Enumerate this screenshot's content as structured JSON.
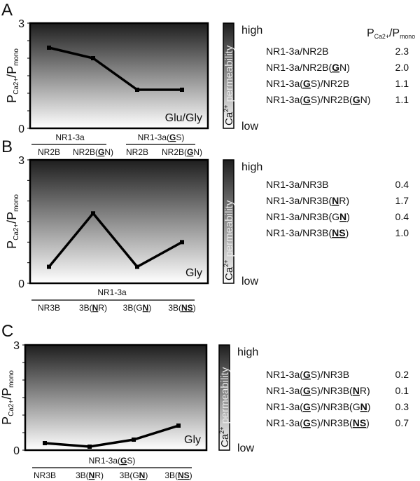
{
  "chart_data": [
    {
      "panel_letter": "A",
      "type": "line",
      "ylabel": {
        "main": "P",
        "sub1": "Ca2+",
        "mid": "/P",
        "sub2": "mono"
      },
      "ylim": [
        0,
        3
      ],
      "yticks": [
        "0",
        "3"
      ],
      "condition": "Glu/Gly",
      "groups": [
        {
          "label": [
            {
              "t": "NR1-3a"
            }
          ]
        },
        {
          "label": [
            {
              "t": "NR1-3a("
            },
            {
              "t": "G",
              "b": true
            },
            {
              "t": "S)"
            }
          ]
        }
      ],
      "categories": [
        [
          {
            "t": "NR2B"
          }
        ],
        [
          {
            "t": "NR2B("
          },
          {
            "t": "G",
            "b": true
          },
          {
            "t": "N)"
          }
        ],
        [
          {
            "t": "NR2B"
          }
        ],
        [
          {
            "t": "NR2B("
          },
          {
            "t": "G",
            "b": true
          },
          {
            "t": "N)"
          }
        ]
      ],
      "values": [
        2.3,
        2.0,
        1.1,
        1.1
      ],
      "scale": {
        "label": "permeability",
        "ion": "Ca",
        "charge": "2+",
        "high": "high",
        "low": "low"
      },
      "table_header": {
        "main": "P",
        "sub1": "Ca2+",
        "mid": "/P",
        "sub2": "mono"
      },
      "table": [
        {
          "name": [
            {
              "t": "NR1-3a/NR2B"
            }
          ],
          "value": "2.3"
        },
        {
          "name": [
            {
              "t": "NR1-3a/NR2B("
            },
            {
              "t": "G",
              "b": true
            },
            {
              "t": "N)"
            }
          ],
          "value": "2.0"
        },
        {
          "name": [
            {
              "t": "NR1-3a("
            },
            {
              "t": "G",
              "b": true
            },
            {
              "t": "S)/NR2B"
            }
          ],
          "value": "1.1"
        },
        {
          "name": [
            {
              "t": "NR1-3a("
            },
            {
              "t": "G",
              "b": true
            },
            {
              "t": "S)/NR2B("
            },
            {
              "t": "G",
              "b": true
            },
            {
              "t": "N)"
            }
          ],
          "value": "1.1"
        }
      ]
    },
    {
      "panel_letter": "B",
      "type": "line",
      "ylabel": {
        "main": "P",
        "sub1": "Ca2+",
        "mid": "/P",
        "sub2": "mono"
      },
      "ylim": [
        0,
        3
      ],
      "yticks": [
        "0",
        "3"
      ],
      "condition": "Gly",
      "groups": [
        {
          "label": [
            {
              "t": "NR1-3a"
            }
          ]
        }
      ],
      "categories": [
        [
          {
            "t": "NR3B"
          }
        ],
        [
          {
            "t": "3B("
          },
          {
            "t": "N",
            "b": true
          },
          {
            "t": "R)"
          }
        ],
        [
          {
            "t": "3B(G"
          },
          {
            "t": "N",
            "b": true
          },
          {
            "t": ")"
          }
        ],
        [
          {
            "t": "3B("
          },
          {
            "t": "NS",
            "b": true
          },
          {
            "t": ")"
          }
        ]
      ],
      "values": [
        0.4,
        1.7,
        0.4,
        1.0
      ],
      "scale": {
        "label": "permeability",
        "ion": "Ca",
        "charge": "2+",
        "high": "high",
        "low": "low"
      },
      "table": [
        {
          "name": [
            {
              "t": "NR1-3a/NR3B"
            }
          ],
          "value": "0.4"
        },
        {
          "name": [
            {
              "t": "NR1-3a/NR3B("
            },
            {
              "t": "N",
              "b": true
            },
            {
              "t": "R)"
            }
          ],
          "value": "1.7"
        },
        {
          "name": [
            {
              "t": "NR1-3a/NR3B(G"
            },
            {
              "t": "N",
              "b": true
            },
            {
              "t": ")"
            }
          ],
          "value": "0.4"
        },
        {
          "name": [
            {
              "t": "NR1-3a/NR3B("
            },
            {
              "t": "NS",
              "b": true
            },
            {
              "t": ")"
            }
          ],
          "value": "1.0"
        }
      ]
    },
    {
      "panel_letter": "C",
      "type": "line",
      "ylabel": {
        "main": "P",
        "sub1": "Ca2+",
        "mid": "/P",
        "sub2": "mono"
      },
      "ylim": [
        0,
        3
      ],
      "yticks": [
        "0",
        "3"
      ],
      "condition": "Gly",
      "groups": [
        {
          "label": [
            {
              "t": "NR1-3a("
            },
            {
              "t": "G",
              "b": true
            },
            {
              "t": "S)"
            }
          ]
        }
      ],
      "categories": [
        [
          {
            "t": "NR3B"
          }
        ],
        [
          {
            "t": "3B("
          },
          {
            "t": "N",
            "b": true
          },
          {
            "t": "R)"
          }
        ],
        [
          {
            "t": "3B(G"
          },
          {
            "t": "N",
            "b": true
          },
          {
            "t": ")"
          }
        ],
        [
          {
            "t": "3B("
          },
          {
            "t": "NS",
            "b": true
          },
          {
            "t": ")"
          }
        ]
      ],
      "values": [
        0.2,
        0.1,
        0.3,
        0.7
      ],
      "scale": {
        "label": "permeability",
        "ion": "Ca",
        "charge": "2+",
        "high": "high",
        "low": "low"
      },
      "table": [
        {
          "name": [
            {
              "t": "NR1-3a("
            },
            {
              "t": "G",
              "b": true
            },
            {
              "t": "S)/NR3B"
            }
          ],
          "value": "0.2"
        },
        {
          "name": [
            {
              "t": "NR1-3a("
            },
            {
              "t": "G",
              "b": true
            },
            {
              "t": "S)/NR3B("
            },
            {
              "t": "N",
              "b": true
            },
            {
              "t": "R)"
            }
          ],
          "value": "0.1"
        },
        {
          "name": [
            {
              "t": "NR1-3a("
            },
            {
              "t": "G",
              "b": true
            },
            {
              "t": "S)/NR3B(G"
            },
            {
              "t": "N",
              "b": true
            },
            {
              "t": ")"
            }
          ],
          "value": "0.3"
        },
        {
          "name": [
            {
              "t": "NR1-3a("
            },
            {
              "t": "G",
              "b": true
            },
            {
              "t": "S)/NR3B("
            },
            {
              "t": "NS",
              "b": true
            },
            {
              "t": ")"
            }
          ],
          "value": "0.7"
        }
      ]
    }
  ],
  "colors": {
    "gradient_top": "#1e1e1e",
    "gradient_bottom": "#ffffff",
    "line": "#000000"
  }
}
